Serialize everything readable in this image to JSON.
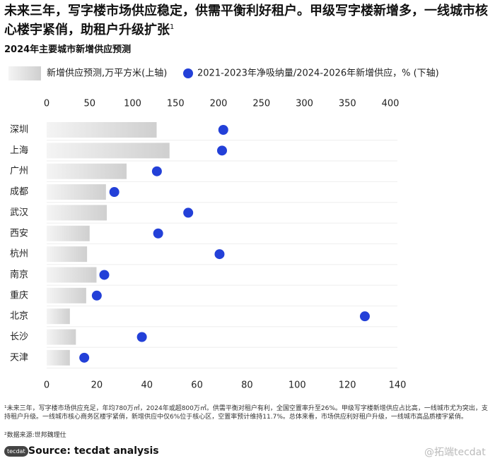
{
  "chart_data": {
    "type": "bar_dot",
    "title": "未来三年，写字楼市场供应稳定，供需平衡利好租户。甲级写字楼新增多，一线城市核心楼宇紧俏，助租户升级扩张",
    "title_note": "1",
    "subtitle": "2024年主要城市新增供应预测",
    "categories": [
      "深圳",
      "上海",
      "广州",
      "成都",
      "武汉",
      "西安",
      "杭州",
      "南京",
      "重庆",
      "北京",
      "长沙",
      "天津"
    ],
    "series": [
      {
        "name": "新增供应预测,万平方米(上轴)",
        "type": "bar",
        "axis": "x",
        "color": "#dcdcdc",
        "values": [
          128,
          143,
          93,
          69,
          70,
          50,
          47,
          58,
          46,
          27,
          34,
          27
        ]
      },
      {
        "name": "2021-2023年净吸纳量/2024-2026年新增供应，% (下轴)",
        "type": "dot",
        "axis": "x2",
        "color": "#2340d8",
        "values": [
          70.5,
          70,
          44,
          27,
          56.5,
          44.5,
          69,
          23,
          20,
          127,
          38,
          15
        ]
      }
    ],
    "xlim": [
      0,
      400
    ],
    "xticks": [
      0,
      50,
      100,
      150,
      200,
      250,
      300,
      350,
      400
    ],
    "x2lim": [
      0,
      140
    ],
    "x2ticks": [
      0,
      20,
      40,
      60,
      80,
      100,
      120,
      140
    ]
  },
  "notes": [
    "¹未来三年，写字楼市场供应充足，年均780万㎡，2024年或超800万㎡。供需平衡对租户有利，全国空置率升至26%。甲级写字楼新增供应占比高，一线城市尤为突出，支持租户升级。一线城市核心商务区楼宇紧俏，新增供应中仅6%位于核心区，空置率预计维持11.7%。总体来看，市场供应利好租户升级，一线城市高品质楼宇紧俏。",
    "²数据来源:世邦魏理仕"
  ],
  "source": "Source: tecdat analysis",
  "logo": "tecdat",
  "watermark": "@拓端tecdat"
}
